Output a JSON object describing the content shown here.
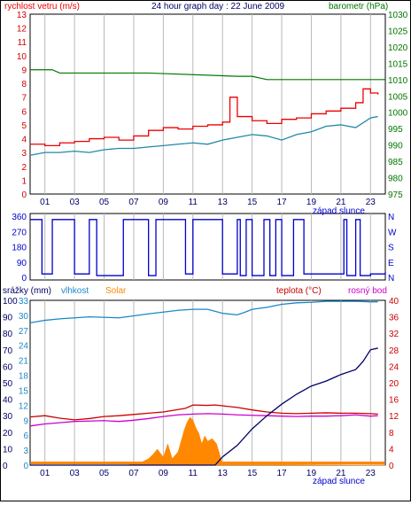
{
  "charts": {
    "wind_pressure": {
      "title": "24 hour graph day : 22 June 2009",
      "left_label": "rychlost vetru (m/s)",
      "right_label": "barometr (hPa)"
    },
    "direction": {
      "right_ticks": [
        "N",
        "W",
        "S",
        "E",
        "N"
      ]
    },
    "weather": {
      "labels": {
        "srazky": "srážky (mm)",
        "vlhkost": "vlhkost",
        "solar": "Solar",
        "teplota": "teplota (°C)",
        "rosny_bod": "rosný bod"
      }
    },
    "sunset_label": "západ slunce",
    "x_tick_labels": [
      "01",
      "03",
      "05",
      "07",
      "09",
      "11",
      "13",
      "15",
      "17",
      "19",
      "21",
      "23"
    ]
  },
  "colors": {
    "wind": "#ee0000",
    "wind_avg": "#2288aa",
    "pressure": "#007700",
    "direction": "#0000cc",
    "precip": "#000066",
    "humidity": "#1a88c8",
    "solar": "#ff8800",
    "temperature": "#cc0000",
    "dewpoint": "#cc00cc",
    "grid": "#b8b8b8"
  },
  "chart_data": [
    {
      "type": "line",
      "title": "24 hour graph day : 22 June 2009",
      "x_range_hours": [
        0,
        24
      ],
      "ylabel": "rychlost vetru (m/s)",
      "ylim": [
        0,
        13
      ],
      "y_ticks": [
        0,
        1,
        2,
        3,
        4,
        5,
        6,
        7,
        8,
        9,
        10,
        11,
        12,
        13
      ],
      "y2label": "barometr (hPa)",
      "y2lim": [
        975,
        1030
      ],
      "y2_ticks": [
        975,
        980,
        985,
        990,
        995,
        1000,
        1005,
        1010,
        1015,
        1020,
        1025,
        1030
      ],
      "series": [
        {
          "name": "rychlost vetru (m/s)",
          "axis": "left",
          "style": "step",
          "x": [
            0,
            1,
            2,
            3,
            4,
            5,
            6,
            7,
            8,
            9,
            10,
            11,
            12,
            13,
            13.5,
            14,
            15,
            16,
            17,
            18,
            19,
            20,
            21,
            22,
            22.5,
            23,
            23.5
          ],
          "y": [
            3.6,
            3.5,
            3.7,
            3.8,
            4.0,
            4.1,
            3.9,
            4.2,
            4.6,
            4.8,
            4.7,
            4.9,
            5.0,
            5.2,
            7.0,
            5.6,
            5.3,
            5.1,
            5.4,
            5.5,
            5.8,
            6.0,
            6.2,
            6.6,
            7.6,
            7.3,
            7.2
          ]
        },
        {
          "name": "",
          "axis": "left",
          "style": "line",
          "x": [
            0,
            1,
            2,
            3,
            4,
            5,
            6,
            7,
            8,
            9,
            10,
            11,
            12,
            13,
            14,
            15,
            16,
            17,
            18,
            19,
            20,
            21,
            22,
            23,
            23.5
          ],
          "y": [
            2.8,
            3.0,
            3.0,
            3.1,
            3.0,
            3.2,
            3.3,
            3.3,
            3.4,
            3.5,
            3.6,
            3.7,
            3.6,
            3.9,
            4.1,
            4.3,
            4.2,
            3.9,
            4.3,
            4.5,
            4.9,
            5.0,
            4.8,
            5.5,
            5.6
          ]
        },
        {
          "name": "barometr (hPa)",
          "axis": "right",
          "x": [
            0,
            1.5,
            2,
            8,
            14,
            14.3,
            14.5,
            15,
            16,
            18,
            20,
            21,
            22,
            22.5,
            23,
            24
          ],
          "y": [
            1013,
            1013,
            1012,
            1012,
            1011,
            1011,
            1011,
            1011,
            1010,
            1010,
            1010,
            1010,
            1010,
            1010,
            1010,
            1010
          ]
        }
      ]
    },
    {
      "type": "line",
      "x_range_hours": [
        0,
        24
      ],
      "ylabel": "",
      "ylim": [
        0,
        360
      ],
      "y_ticks": [
        0,
        90,
        180,
        270,
        360
      ],
      "y2_ticks": [
        "N",
        "W",
        "S",
        "E",
        "N"
      ],
      "series": [
        {
          "name": "",
          "style": "step",
          "x": [
            0,
            0.8,
            1.5,
            2.5,
            3,
            4,
            4.5,
            5.8,
            6.3,
            7,
            8,
            8.5,
            10,
            10.5,
            11,
            12,
            13,
            13.5,
            14,
            14.2,
            14.6,
            15,
            15.8,
            16.2,
            16.6,
            17,
            17.8,
            18.5,
            21,
            21.2,
            21.4,
            21.7,
            22,
            22.3,
            23,
            24
          ],
          "y": [
            340,
            20,
            340,
            340,
            20,
            340,
            10,
            10,
            340,
            340,
            10,
            340,
            340,
            20,
            340,
            340,
            20,
            20,
            340,
            10,
            340,
            10,
            340,
            10,
            340,
            10,
            340,
            20,
            20,
            340,
            10,
            10,
            340,
            10,
            20,
            30
          ]
        }
      ]
    },
    {
      "type": "line",
      "x_range_hours": [
        0,
        24
      ],
      "series": [
        {
          "name": "srážky (mm)",
          "axis": "srazky",
          "ylim": [
            0,
            100
          ],
          "y_ticks": [
            0,
            10,
            20,
            30,
            40,
            50,
            60,
            70,
            80,
            90,
            100
          ],
          "x": [
            0,
            12.5,
            13,
            14,
            15,
            16,
            17,
            18,
            19,
            20,
            21,
            22,
            22.5,
            23,
            23.5
          ],
          "y": [
            0,
            0,
            5,
            12,
            22,
            30,
            37,
            43,
            48,
            51,
            55,
            58,
            63,
            70,
            71
          ]
        },
        {
          "name": "vlhkost",
          "axis": "vlhkost",
          "ylim": [
            0,
            33
          ],
          "y_ticks": [
            0,
            3,
            6,
            9,
            12,
            15,
            18,
            21,
            24,
            27,
            30,
            33
          ],
          "x": [
            0,
            1,
            2,
            4,
            6,
            7,
            8,
            10,
            11,
            12,
            13,
            14,
            14.5,
            15,
            16,
            17,
            18,
            19,
            20,
            21,
            22,
            23,
            23.5
          ],
          "y": [
            28.5,
            29,
            29.3,
            29.7,
            29.5,
            29.9,
            30.3,
            31,
            31.2,
            31.2,
            30.4,
            30.1,
            30.6,
            31.2,
            31.6,
            32.2,
            32.5,
            32.6,
            32.8,
            32.8,
            32.8,
            32.7,
            32.7
          ]
        },
        {
          "name": "teplota (°C)",
          "axis": "teplota",
          "ylim": [
            0,
            40
          ],
          "y_ticks": [
            0,
            4,
            8,
            12,
            16,
            20,
            24,
            28,
            32,
            36,
            40
          ],
          "x": [
            0,
            1,
            2,
            3,
            4,
            5,
            6,
            7,
            8,
            9,
            10,
            10.5,
            11,
            12,
            12.5,
            13,
            14,
            15,
            16,
            17,
            18,
            19,
            20,
            21,
            22,
            23,
            23.5
          ],
          "y": [
            11.7,
            12,
            11.4,
            11,
            11.3,
            11.8,
            12,
            12.3,
            12.6,
            12.9,
            13.5,
            13.8,
            14.6,
            14.5,
            14.6,
            14.4,
            14.0,
            13.4,
            12.9,
            12.6,
            12.5,
            12.6,
            12.7,
            12.6,
            12.6,
            12.5,
            12.4
          ]
        },
        {
          "name": "rosný bod",
          "axis": "teplota",
          "ylim": [
            0,
            40
          ],
          "x": [
            0,
            1,
            2,
            3,
            4,
            5,
            6,
            7,
            8,
            9,
            10,
            11,
            12,
            13,
            14,
            15,
            16,
            17,
            18,
            19,
            20,
            21,
            22,
            23,
            23.5
          ],
          "y": [
            9.5,
            10,
            10.3,
            10.6,
            10.7,
            10.8,
            10.6,
            10.9,
            11.3,
            11.8,
            12.2,
            12.4,
            12.5,
            12.4,
            12.2,
            12.1,
            12.0,
            11.9,
            11.8,
            11.9,
            11.9,
            12.0,
            12.2,
            11.9,
            12.0
          ]
        },
        {
          "name": "Solar",
          "axis": "solar",
          "style": "area",
          "x": [
            0,
            6.5,
            7,
            7.5,
            8,
            8.3,
            8.6,
            9,
            9.3,
            9.6,
            10,
            10.2,
            10.4,
            10.6,
            10.8,
            11,
            11.2,
            11.4,
            11.6,
            11.8,
            12,
            12.3,
            12.6,
            13,
            24
          ],
          "y": [
            0,
            0,
            0.2,
            0.5,
            1.2,
            2.0,
            3.0,
            1.5,
            4.0,
            1.2,
            2.5,
            4.5,
            6.5,
            8.0,
            9.0,
            8.5,
            7.0,
            6.0,
            4.0,
            5.5,
            4.5,
            5.0,
            4.0,
            0.2,
            0
          ]
        }
      ]
    }
  ]
}
